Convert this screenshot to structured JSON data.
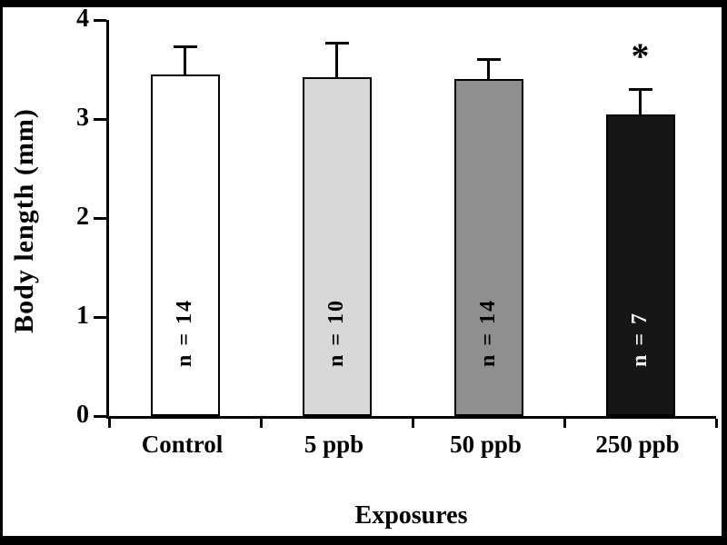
{
  "chart_data": {
    "type": "bar",
    "title": "",
    "xlabel": "Exposures",
    "ylabel": "Body length (mm)",
    "ylim": [
      0,
      4
    ],
    "yticks": [
      0,
      1,
      2,
      3,
      4
    ],
    "categories": [
      "Control",
      "5 ppb",
      "50 ppb",
      "250 ppb"
    ],
    "values": [
      3.45,
      3.42,
      3.4,
      3.05
    ],
    "errors": [
      0.28,
      0.35,
      0.2,
      0.25
    ],
    "bar_colors": [
      "#ffffff",
      "#d8d8d8",
      "#8f8f8f",
      "#161616"
    ],
    "bar_labels": [
      "n = 14",
      "n = 10",
      "n = 14",
      "n = 7"
    ],
    "bar_label_colors": [
      "#000000",
      "#000000",
      "#000000",
      "#f2f2f2"
    ],
    "annotations": [
      {
        "category_index": 3,
        "text": "*"
      }
    ],
    "grid": false,
    "legend_position": "none",
    "axis_color": "#000000",
    "background": "#ffffff"
  }
}
